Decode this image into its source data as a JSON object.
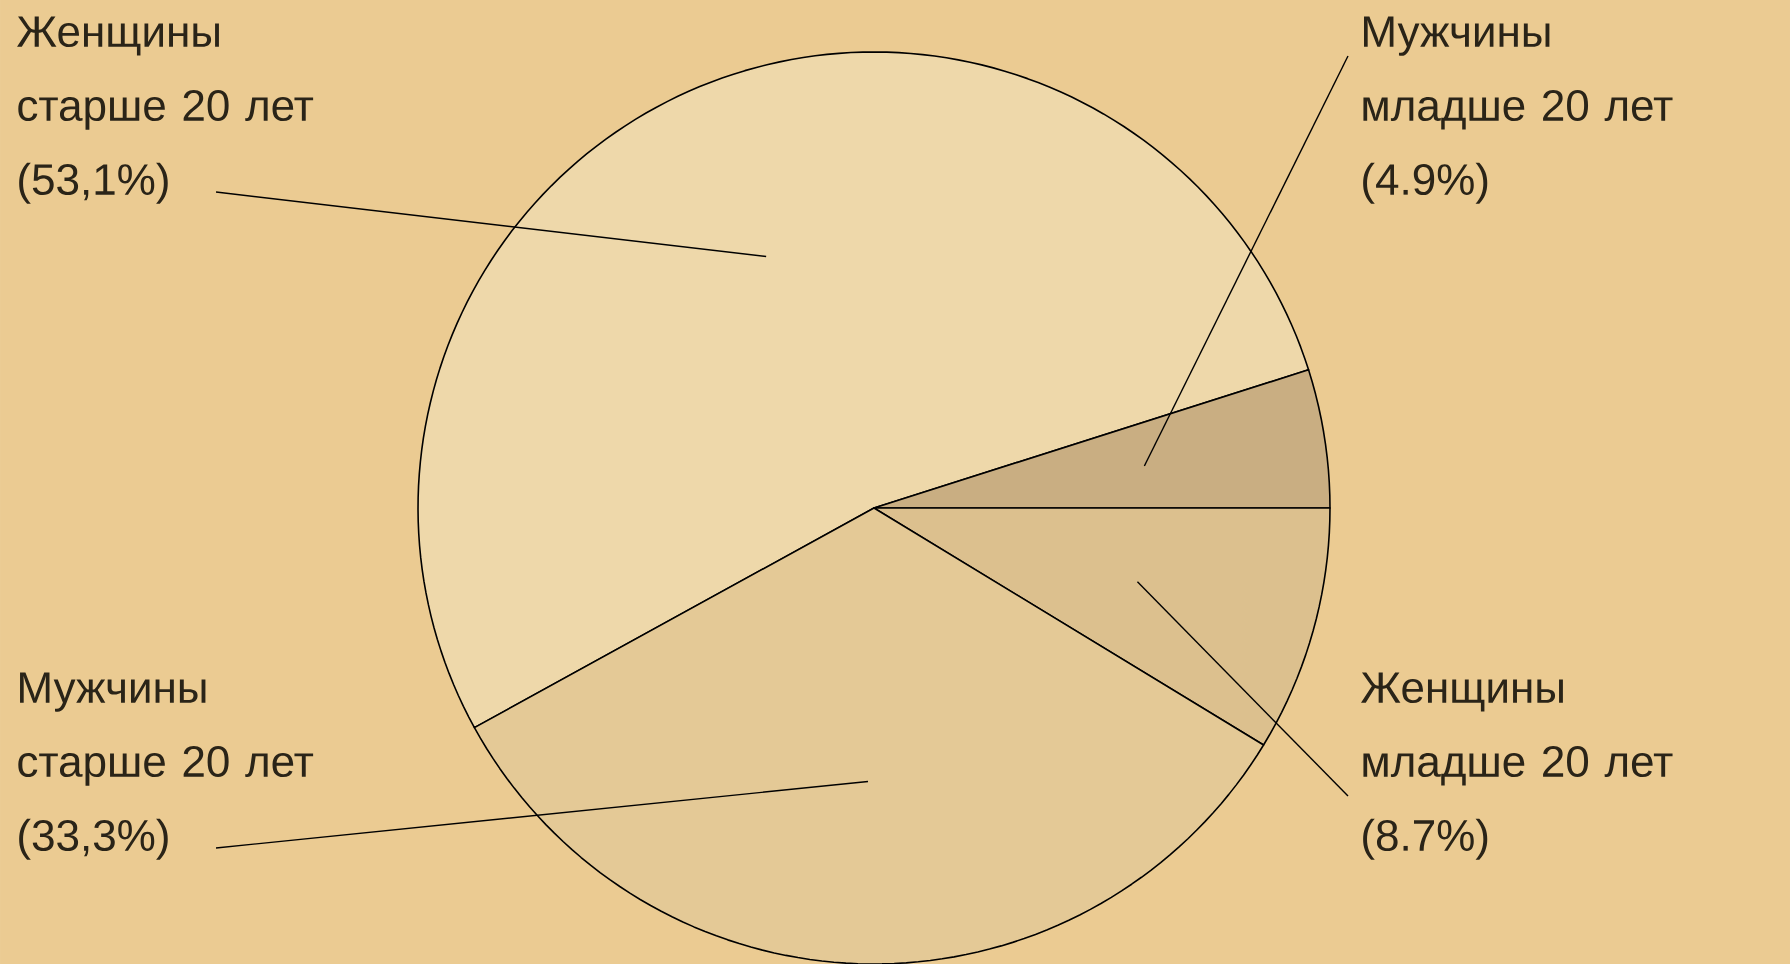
{
  "chart_data": {
    "type": "pie",
    "categories": [
      "Женщины старше 20 лет",
      "Мужчины младше 20 лет",
      "Женщины младше 20 лет",
      "Мужчины старше 20 лет"
    ],
    "values": [
      53.1,
      4.9,
      8.7,
      33.3
    ],
    "value_labels": [
      "(53,1%)",
      "(4.9%)",
      "(8.7%)",
      "(33,3%)"
    ],
    "colors": [
      "#eed8aa",
      "#c9ae82",
      "#dcc08e",
      "#e4c996"
    ]
  }
}
